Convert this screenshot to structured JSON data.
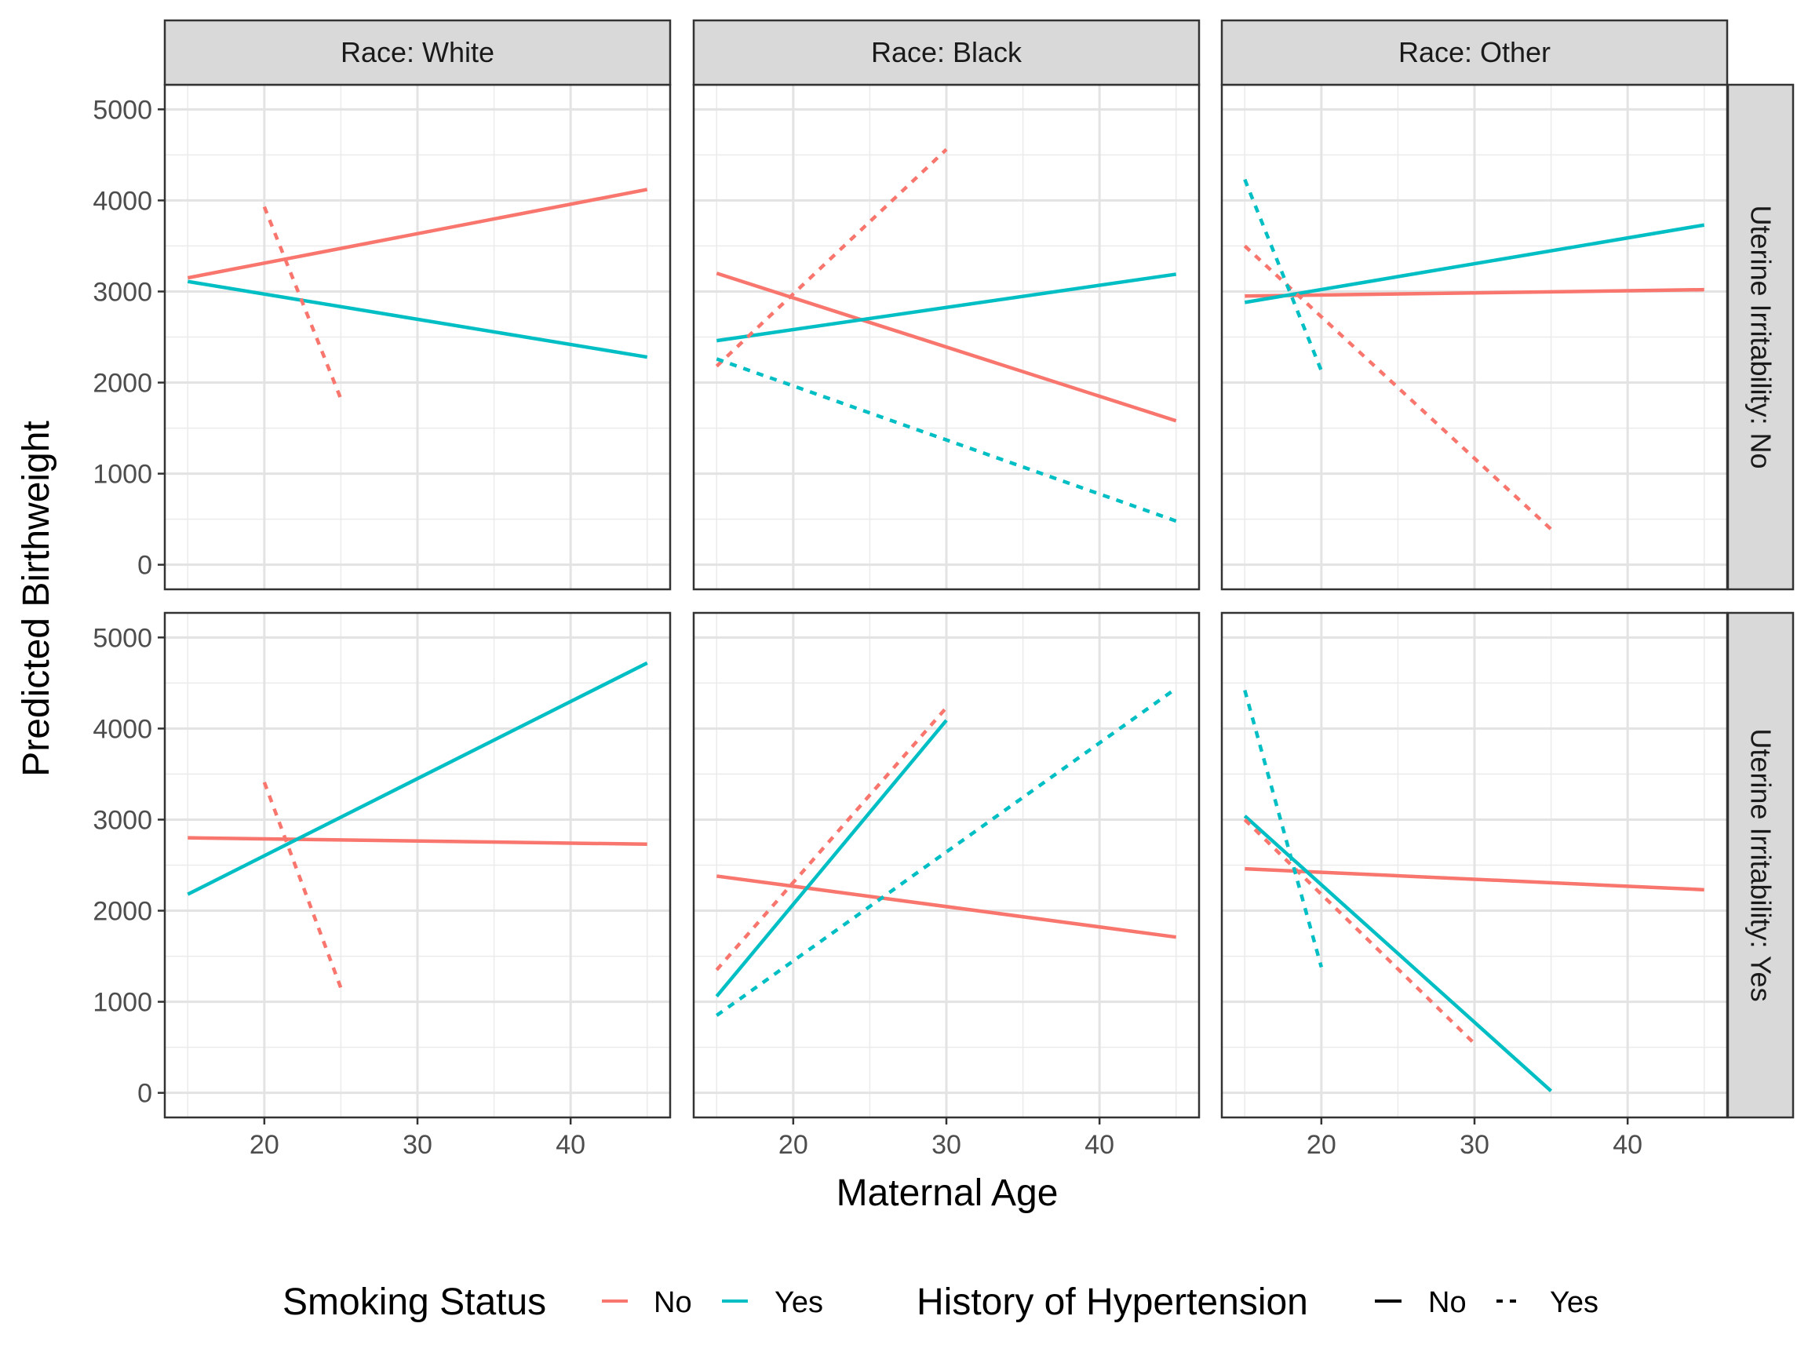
{
  "chart_data": {
    "type": "line",
    "xlabel": "Maternal Age",
    "ylabel": "Predicted Birthweight",
    "xlim": [
      13.5,
      46.5
    ],
    "ylim": [
      -270,
      5270
    ],
    "x_ticks": [
      20,
      30,
      40
    ],
    "x_tick_labels": [
      "20",
      "30",
      "40"
    ],
    "y_ticks": [
      0,
      1000,
      2000,
      3000,
      4000,
      5000
    ],
    "y_tick_labels": [
      "0",
      "1000",
      "2000",
      "3000",
      "4000",
      "5000"
    ],
    "grid": true,
    "column_strips": [
      "Race: White",
      "Race: Black",
      "Race: Other"
    ],
    "row_strips": [
      "Uterine Irritability: No",
      "Uterine Irritability: Yes"
    ],
    "colors": {
      "No": "#F8766D",
      "Yes": "#00BFC4"
    },
    "legend": {
      "position": "bottom",
      "smoking": {
        "title": "Smoking Status",
        "items": [
          "No",
          "Yes"
        ]
      },
      "hypertension": {
        "title": "History of Hypertension",
        "items": [
          "No",
          "Yes"
        ]
      }
    },
    "panels": [
      {
        "row": 0,
        "col": 0,
        "lines": [
          {
            "smoking": "No",
            "hypertension": "No",
            "x": [
              15,
              45
            ],
            "y": [
              3150,
              4120
            ]
          },
          {
            "smoking": "Yes",
            "hypertension": "No",
            "x": [
              15,
              45
            ],
            "y": [
              3110,
              2280
            ]
          },
          {
            "smoking": "No",
            "hypertension": "Yes",
            "x": [
              20,
              25
            ],
            "y": [
              3930,
              1820
            ]
          }
        ]
      },
      {
        "row": 0,
        "col": 1,
        "lines": [
          {
            "smoking": "No",
            "hypertension": "No",
            "x": [
              15,
              45
            ],
            "y": [
              3200,
              1580
            ]
          },
          {
            "smoking": "Yes",
            "hypertension": "No",
            "x": [
              15,
              45
            ],
            "y": [
              2460,
              3190
            ]
          },
          {
            "smoking": "No",
            "hypertension": "Yes",
            "x": [
              15,
              30
            ],
            "y": [
              2180,
              4560
            ]
          },
          {
            "smoking": "Yes",
            "hypertension": "Yes",
            "x": [
              15,
              45
            ],
            "y": [
              2260,
              480
            ]
          }
        ]
      },
      {
        "row": 0,
        "col": 2,
        "lines": [
          {
            "smoking": "No",
            "hypertension": "No",
            "x": [
              15,
              45
            ],
            "y": [
              2950,
              3020
            ]
          },
          {
            "smoking": "Yes",
            "hypertension": "No",
            "x": [
              15,
              45
            ],
            "y": [
              2880,
              3730
            ]
          },
          {
            "smoking": "No",
            "hypertension": "Yes",
            "x": [
              15,
              35
            ],
            "y": [
              3500,
              390
            ]
          },
          {
            "smoking": "Yes",
            "hypertension": "Yes",
            "x": [
              15,
              20
            ],
            "y": [
              4230,
              2130
            ]
          }
        ]
      },
      {
        "row": 1,
        "col": 0,
        "lines": [
          {
            "smoking": "No",
            "hypertension": "No",
            "x": [
              15,
              45
            ],
            "y": [
              2800,
              2730
            ]
          },
          {
            "smoking": "Yes",
            "hypertension": "No",
            "x": [
              15,
              45
            ],
            "y": [
              2180,
              4720
            ]
          },
          {
            "smoking": "No",
            "hypertension": "Yes",
            "x": [
              20,
              25
            ],
            "y": [
              3410,
              1150
            ]
          }
        ]
      },
      {
        "row": 1,
        "col": 1,
        "lines": [
          {
            "smoking": "No",
            "hypertension": "No",
            "x": [
              15,
              45
            ],
            "y": [
              2380,
              1710
            ]
          },
          {
            "smoking": "Yes",
            "hypertension": "No",
            "x": [
              15,
              30
            ],
            "y": [
              1060,
              4090
            ]
          },
          {
            "smoking": "No",
            "hypertension": "Yes",
            "x": [
              15,
              30
            ],
            "y": [
              1350,
              4230
            ]
          },
          {
            "smoking": "Yes",
            "hypertension": "Yes",
            "x": [
              15,
              45
            ],
            "y": [
              850,
              4440
            ]
          }
        ]
      },
      {
        "row": 1,
        "col": 2,
        "lines": [
          {
            "smoking": "No",
            "hypertension": "No",
            "x": [
              15,
              45
            ],
            "y": [
              2460,
              2230
            ]
          },
          {
            "smoking": "Yes",
            "hypertension": "No",
            "x": [
              15,
              35
            ],
            "y": [
              3040,
              20
            ]
          },
          {
            "smoking": "No",
            "hypertension": "Yes",
            "x": [
              15,
              30
            ],
            "y": [
              3000,
              540
            ]
          },
          {
            "smoking": "Yes",
            "hypertension": "Yes",
            "x": [
              15,
              20
            ],
            "y": [
              4420,
              1380
            ]
          }
        ]
      }
    ]
  }
}
